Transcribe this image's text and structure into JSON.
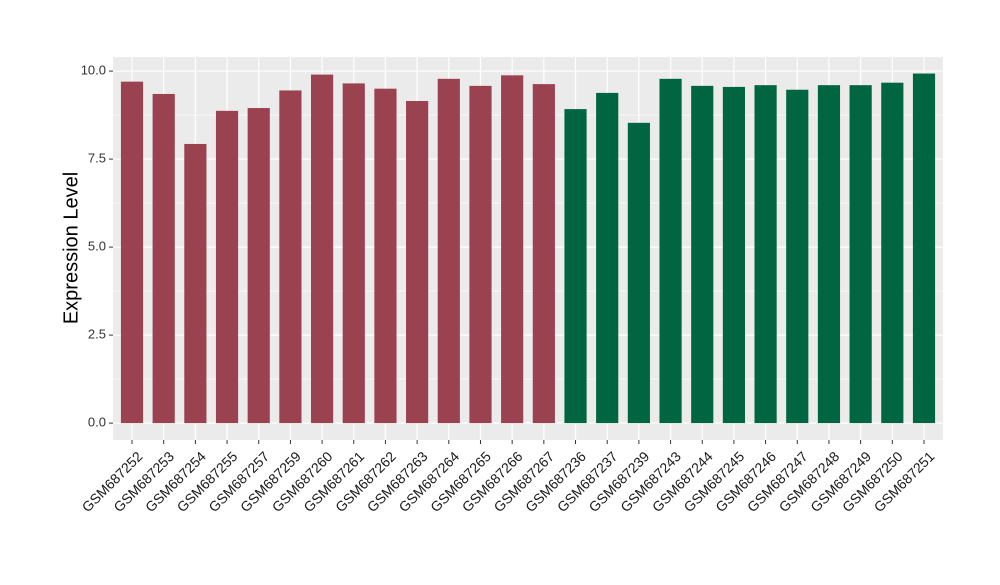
{
  "chart_data": {
    "type": "bar",
    "y_label": "Expression Level",
    "categories": [
      "GSM687252",
      "GSM687253",
      "GSM687254",
      "GSM687255",
      "GSM687257",
      "GSM687259",
      "GSM687260",
      "GSM687261",
      "GSM687262",
      "GSM687263",
      "GSM687264",
      "GSM687265",
      "GSM687266",
      "GSM687267",
      "GSM687236",
      "GSM687237",
      "GSM687239",
      "GSM687243",
      "GSM687244",
      "GSM687245",
      "GSM687246",
      "GSM687247",
      "GSM687248",
      "GSM687249",
      "GSM687250",
      "GSM687251"
    ],
    "values": [
      9.7,
      9.35,
      7.93,
      8.87,
      8.95,
      9.45,
      9.9,
      9.65,
      9.5,
      9.15,
      9.78,
      9.58,
      9.88,
      9.63,
      8.92,
      9.38,
      8.53,
      9.78,
      9.58,
      9.55,
      9.6,
      9.47,
      9.6,
      9.6,
      9.67,
      9.93
    ],
    "colors": [
      "#9b4250",
      "#9b4250",
      "#9b4250",
      "#9b4250",
      "#9b4250",
      "#9b4250",
      "#9b4250",
      "#9b4250",
      "#9b4250",
      "#9b4250",
      "#9b4250",
      "#9b4250",
      "#9b4250",
      "#9b4250",
      "#006642",
      "#006642",
      "#006642",
      "#006642",
      "#006642",
      "#006642",
      "#006642",
      "#006642",
      "#006642",
      "#006642",
      "#006642",
      "#006642"
    ],
    "ylim": [
      -0.48,
      10.4
    ],
    "yticks": [
      {
        "value": 0,
        "label": "0.0"
      },
      {
        "value": 2.5,
        "label": "2.5"
      },
      {
        "value": 5,
        "label": "5.0"
      },
      {
        "value": 7.5,
        "label": "7.5"
      },
      {
        "value": 10,
        "label": "10.0"
      }
    ],
    "grid": true
  }
}
